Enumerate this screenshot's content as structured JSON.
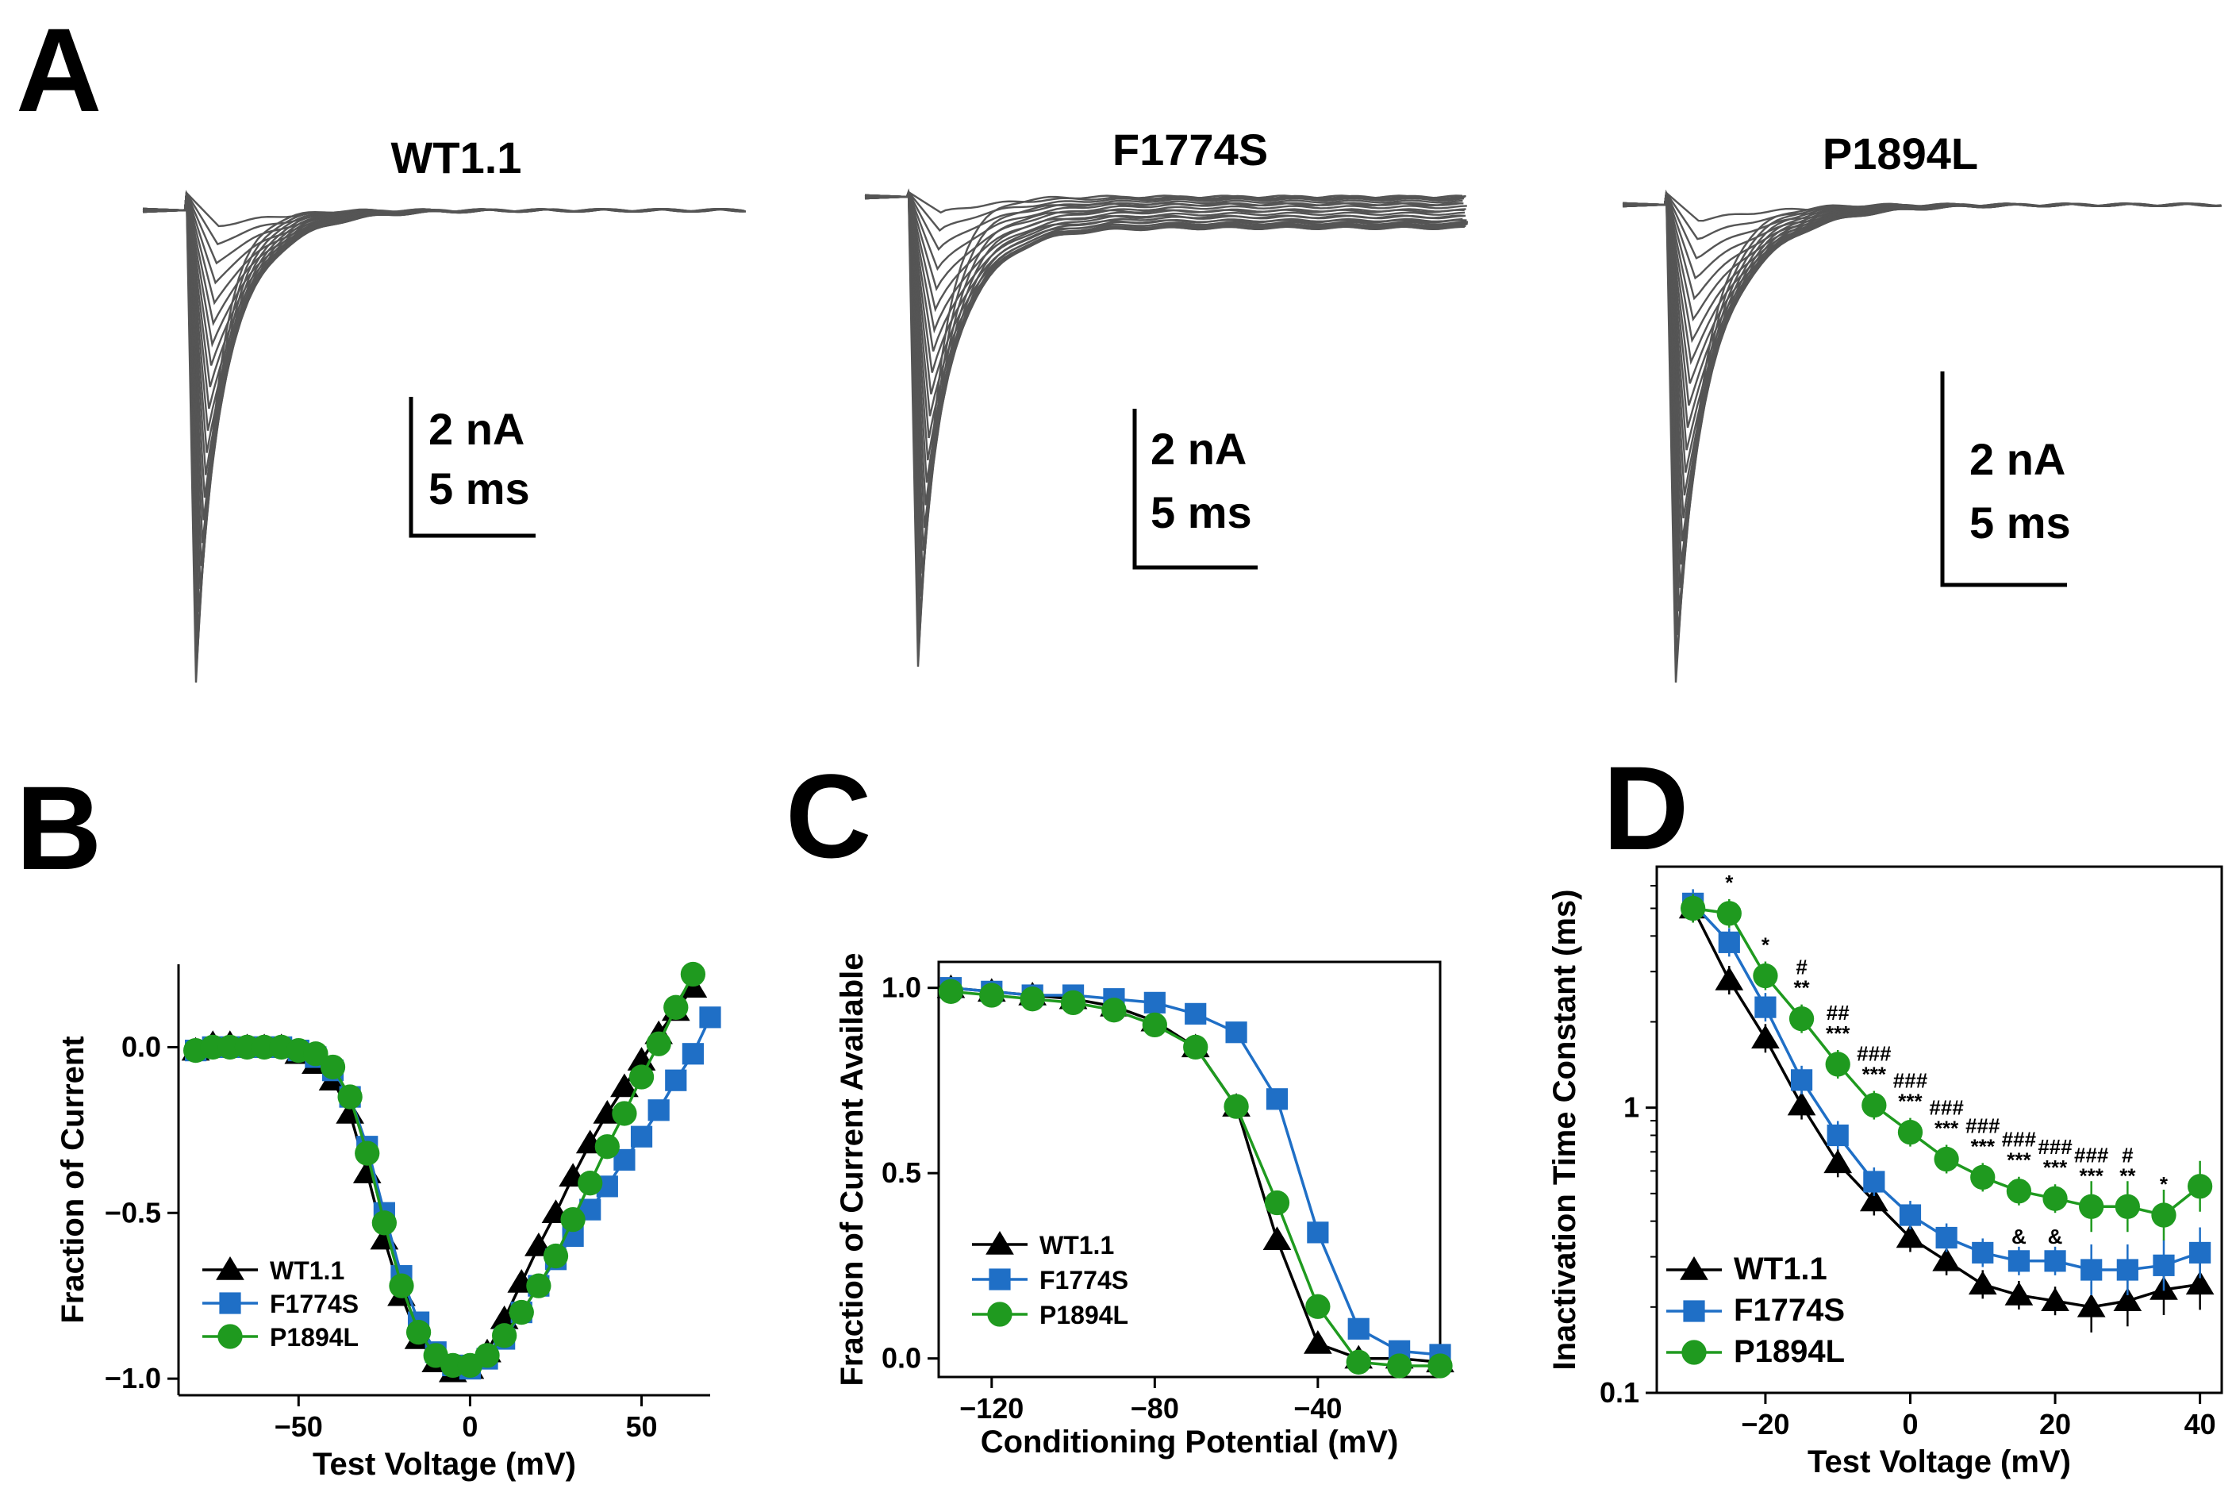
{
  "panel_letters": {
    "a": "A",
    "b": "B",
    "c": "C",
    "d": "D"
  },
  "colors": {
    "wt": "#000000",
    "f1774s": "#1f6fc6",
    "p1894l": "#1f9a1f",
    "trace": "#555555"
  },
  "panel_a": {
    "traces": [
      {
        "title": "WT1.1",
        "scale_current": "2 nA",
        "scale_time": "5 ms",
        "kind": "fast"
      },
      {
        "title": "F1774S",
        "scale_current": "2 nA",
        "scale_time": "5 ms",
        "kind": "persistent"
      },
      {
        "title": "P1894L",
        "scale_current": "2 nA",
        "scale_time": "5 ms",
        "kind": "slow"
      }
    ]
  },
  "chart_data": [
    {
      "panel": "B",
      "type": "line",
      "xlabel": "Test Voltage (mV)",
      "ylabel": "Fraction of Current",
      "xlim": [
        -85,
        70
      ],
      "ylim": [
        -1.05,
        0.25
      ],
      "xticks": [
        -50,
        0,
        50
      ],
      "yticks": [
        -1.0,
        -0.5,
        0.0
      ],
      "ytick_labels": [
        "−1.0",
        "−0.5",
        "0.0"
      ],
      "xtick_labels": [
        "−50",
        "0",
        "50"
      ],
      "legend": "bottom-left",
      "series": [
        {
          "name": "WT1.1",
          "key": "wt",
          "marker": "triangle",
          "x": [
            -80,
            -75,
            -70,
            -65,
            -60,
            -55,
            -50,
            -45,
            -40,
            -35,
            -30,
            -25,
            -20,
            -15,
            -10,
            -5,
            0,
            5,
            10,
            15,
            20,
            25,
            30,
            35,
            40,
            45,
            50,
            55,
            60,
            65
          ],
          "y": [
            -0.01,
            0.01,
            0.01,
            0.0,
            0.0,
            0.0,
            -0.02,
            -0.05,
            -0.1,
            -0.2,
            -0.38,
            -0.58,
            -0.75,
            -0.88,
            -0.95,
            -0.98,
            -0.97,
            -0.92,
            -0.82,
            -0.71,
            -0.6,
            -0.5,
            -0.39,
            -0.29,
            -0.2,
            -0.12,
            -0.04,
            0.04,
            0.11,
            0.18
          ]
        },
        {
          "name": "F1774S",
          "key": "f1774s",
          "marker": "square",
          "x": [
            -80,
            -75,
            -70,
            -65,
            -60,
            -55,
            -50,
            -45,
            -40,
            -35,
            -30,
            -25,
            -20,
            -15,
            -10,
            -5,
            0,
            5,
            10,
            15,
            20,
            25,
            30,
            35,
            40,
            45,
            50,
            55,
            60,
            65,
            70
          ],
          "y": [
            -0.01,
            0.0,
            0.0,
            0.0,
            0.0,
            0.0,
            -0.01,
            -0.03,
            -0.07,
            -0.15,
            -0.3,
            -0.5,
            -0.69,
            -0.83,
            -0.92,
            -0.96,
            -0.97,
            -0.94,
            -0.88,
            -0.8,
            -0.72,
            -0.64,
            -0.57,
            -0.49,
            -0.42,
            -0.34,
            -0.27,
            -0.19,
            -0.1,
            -0.02,
            0.09
          ]
        },
        {
          "name": "P1894L",
          "key": "p1894l",
          "marker": "circle",
          "x": [
            -80,
            -75,
            -70,
            -65,
            -60,
            -55,
            -50,
            -45,
            -40,
            -35,
            -30,
            -25,
            -20,
            -15,
            -10,
            -5,
            0,
            5,
            10,
            15,
            20,
            25,
            30,
            35,
            40,
            45,
            50,
            55,
            60,
            65
          ],
          "y": [
            -0.01,
            0.0,
            0.0,
            0.0,
            0.0,
            0.0,
            -0.01,
            -0.02,
            -0.06,
            -0.15,
            -0.32,
            -0.53,
            -0.72,
            -0.86,
            -0.93,
            -0.96,
            -0.96,
            -0.93,
            -0.87,
            -0.8,
            -0.72,
            -0.63,
            -0.52,
            -0.41,
            -0.3,
            -0.2,
            -0.09,
            0.01,
            0.12,
            0.22
          ]
        }
      ]
    },
    {
      "panel": "C",
      "type": "line",
      "xlabel": "Conditioning Potential (mV)",
      "ylabel": "Fraction of Current Available",
      "xlim": [
        -133,
        -10
      ],
      "ylim": [
        -0.05,
        1.07
      ],
      "xticks": [
        -120,
        -80,
        -40
      ],
      "xtick_labels": [
        "−120",
        "−80",
        "−40"
      ],
      "yticks": [
        0.0,
        0.5,
        1.0
      ],
      "ytick_labels": [
        "0.0",
        "0.5",
        "1.0"
      ],
      "legend": "bottom-left",
      "series": [
        {
          "name": "WT1.1",
          "key": "wt",
          "marker": "triangle",
          "x": [
            -130,
            -120,
            -110,
            -100,
            -90,
            -80,
            -70,
            -60,
            -50,
            -40,
            -30,
            -20,
            -10
          ],
          "y": [
            1.0,
            0.99,
            0.98,
            0.97,
            0.95,
            0.91,
            0.84,
            0.68,
            0.32,
            0.04,
            0.0,
            0.0,
            -0.01
          ]
        },
        {
          "name": "F1774S",
          "key": "f1774s",
          "marker": "square",
          "x": [
            -130,
            -120,
            -110,
            -100,
            -90,
            -80,
            -70,
            -60,
            -50,
            -40,
            -30,
            -20,
            -10
          ],
          "y": [
            1.0,
            0.99,
            0.98,
            0.98,
            0.97,
            0.96,
            0.93,
            0.88,
            0.7,
            0.34,
            0.08,
            0.02,
            0.01
          ]
        },
        {
          "name": "P1894L",
          "key": "p1894l",
          "marker": "circle",
          "x": [
            -130,
            -120,
            -110,
            -100,
            -90,
            -80,
            -70,
            -60,
            -50,
            -40,
            -30,
            -20,
            -10
          ],
          "y": [
            0.99,
            0.98,
            0.97,
            0.96,
            0.94,
            0.9,
            0.84,
            0.68,
            0.42,
            0.14,
            -0.01,
            -0.02,
            -0.02
          ]
        }
      ]
    },
    {
      "panel": "D",
      "type": "line",
      "yscale": "log",
      "xlabel": "Test Voltage (mV)",
      "ylabel": "Inactivation Time Constant (ms)",
      "xlim": [
        -35,
        43
      ],
      "ylim": [
        0.1,
        7
      ],
      "xticks": [
        -20,
        0,
        20,
        40
      ],
      "xtick_labels": [
        "−20",
        "0",
        "20",
        "40"
      ],
      "yticks": [
        0.1,
        1
      ],
      "ytick_labels": [
        "0.1",
        "1"
      ],
      "legend": "bottom-left",
      "series": [
        {
          "name": "WT1.1",
          "key": "wt",
          "marker": "triangle",
          "x": [
            -30,
            -25,
            -20,
            -15,
            -10,
            -5,
            0,
            5,
            10,
            15,
            20,
            25,
            30,
            35,
            40
          ],
          "y": [
            5.0,
            2.8,
            1.75,
            1.02,
            0.64,
            0.47,
            0.35,
            0.29,
            0.24,
            0.22,
            0.21,
            0.2,
            0.21,
            0.23,
            0.24
          ]
        },
        {
          "name": "F1774S",
          "key": "f1774s",
          "marker": "square",
          "x": [
            -30,
            -25,
            -20,
            -15,
            -10,
            -5,
            0,
            5,
            10,
            15,
            20,
            25,
            30,
            35,
            40
          ],
          "y": [
            5.2,
            3.8,
            2.25,
            1.25,
            0.8,
            0.55,
            0.42,
            0.35,
            0.31,
            0.29,
            0.29,
            0.27,
            0.27,
            0.28,
            0.31
          ]
        },
        {
          "name": "P1894L",
          "key": "p1894l",
          "marker": "circle",
          "x": [
            -30,
            -25,
            -20,
            -15,
            -10,
            -5,
            0,
            5,
            10,
            15,
            20,
            25,
            30,
            35,
            40
          ],
          "y": [
            5.0,
            4.8,
            2.9,
            2.05,
            1.42,
            1.02,
            0.82,
            0.66,
            0.57,
            0.51,
            0.48,
            0.45,
            0.45,
            0.42,
            0.53
          ]
        }
      ],
      "annotations": [
        {
          "x": -25,
          "lines": [
            "*"
          ]
        },
        {
          "x": -20,
          "lines": [
            "*"
          ]
        },
        {
          "x": -15,
          "lines": [
            "#",
            "**"
          ]
        },
        {
          "x": -10,
          "lines": [
            "##",
            "***"
          ]
        },
        {
          "x": -5,
          "lines": [
            "###",
            "***"
          ]
        },
        {
          "x": 0,
          "lines": [
            "###",
            "***"
          ]
        },
        {
          "x": 5,
          "lines": [
            "###",
            "***"
          ]
        },
        {
          "x": 10,
          "lines": [
            "###",
            "***"
          ]
        },
        {
          "x": 15,
          "lines": [
            "###",
            "***"
          ]
        },
        {
          "x": 20,
          "lines": [
            "###",
            "***"
          ]
        },
        {
          "x": 25,
          "lines": [
            "###",
            "***"
          ]
        },
        {
          "x": 30,
          "lines": [
            "#",
            "**"
          ]
        },
        {
          "x": 35,
          "lines": [
            "*"
          ]
        },
        {
          "x": 15,
          "lines": [
            "&"
          ],
          "row": "low"
        },
        {
          "x": 20,
          "lines": [
            "&"
          ],
          "row": "low"
        }
      ]
    }
  ]
}
